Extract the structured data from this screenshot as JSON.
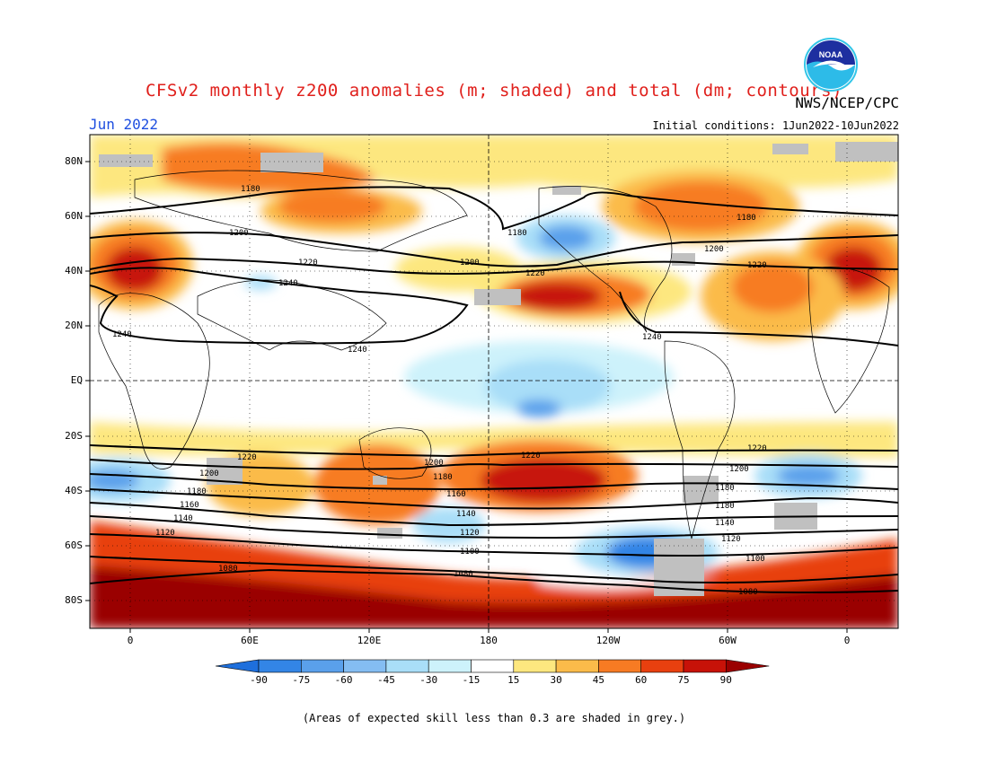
{
  "header": {
    "title": "CFSv2 monthly z200 anomalies (m; shaded) and total (dm; contours)",
    "agency": "NWS/NCEP/CPC",
    "month": "Jun 2022",
    "initial_conditions": "Initial conditions: 1Jun2022-10Jun2022",
    "logo_text": "NOAA"
  },
  "axes": {
    "lat_labels": [
      "80N",
      "60N",
      "40N",
      "20N",
      "EQ",
      "20S",
      "40S",
      "60S",
      "80S"
    ],
    "lon_labels": [
      "0",
      "60E",
      "120E",
      "180",
      "120W",
      "60W",
      "0"
    ]
  },
  "colorbar": {
    "labels": [
      "-90",
      "-75",
      "-60",
      "-45",
      "-30",
      "-15",
      "15",
      "30",
      "45",
      "60",
      "75",
      "90"
    ],
    "colors": [
      "#1e6fdc",
      "#3385e6",
      "#5aa0eb",
      "#84bdf2",
      "#a9def8",
      "#cdf2fb",
      "#ffffff",
      "#fde77f",
      "#fbbb4a",
      "#f77b23",
      "#e8400f",
      "#c71208",
      "#9a0000"
    ]
  },
  "contour_labels": [
    "1180",
    "1200",
    "1220",
    "1240",
    "1160",
    "1140",
    "1120",
    "1100",
    "1080"
  ],
  "footnote": "(Areas of expected skill less than 0.3 are shaded in grey.)"
}
